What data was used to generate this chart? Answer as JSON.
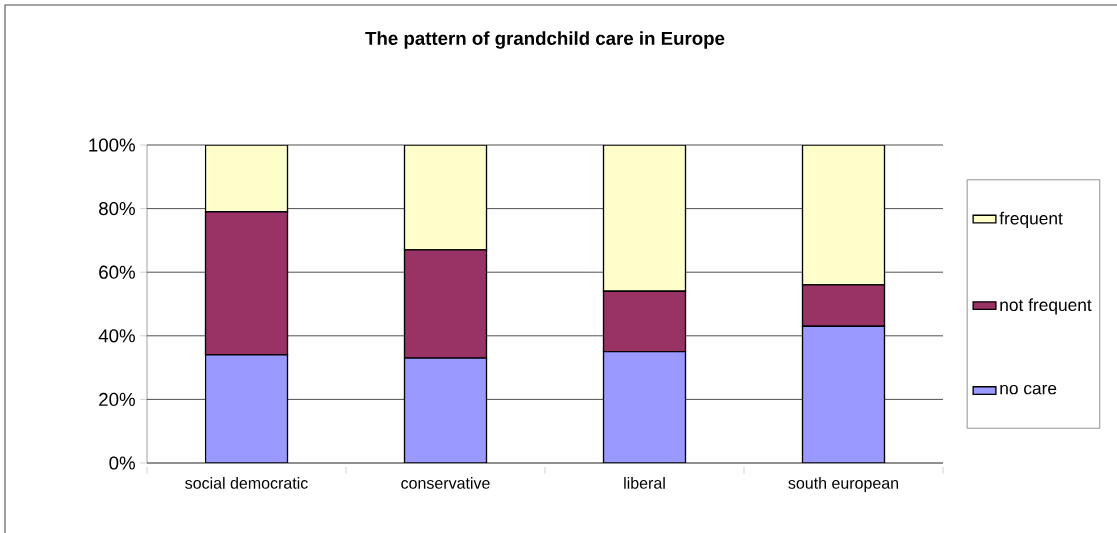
{
  "chart_data": {
    "type": "bar",
    "title": "The pattern of grandchild care in Europe",
    "categories": [
      "social democratic",
      "conservative",
      "liberal",
      "south european"
    ],
    "stacked": true,
    "series": [
      {
        "name": "no care",
        "color": "#9999ff",
        "values": [
          34,
          33,
          35,
          43
        ]
      },
      {
        "name": "not frequent",
        "color": "#993366",
        "values": [
          45,
          34,
          19,
          13
        ]
      },
      {
        "name": "frequent",
        "color": "#ffffcc",
        "values": [
          21,
          33,
          46,
          44
        ]
      }
    ],
    "ylim": [
      0,
      100
    ],
    "yticks": [
      {
        "value": 0,
        "label": "0%"
      },
      {
        "value": 20,
        "label": "20%"
      },
      {
        "value": 40,
        "label": "40%"
      },
      {
        "value": 60,
        "label": "60%"
      },
      {
        "value": 80,
        "label": "80%"
      },
      {
        "value": 100,
        "label": "100%"
      }
    ],
    "grid": "y",
    "legend": "right"
  }
}
